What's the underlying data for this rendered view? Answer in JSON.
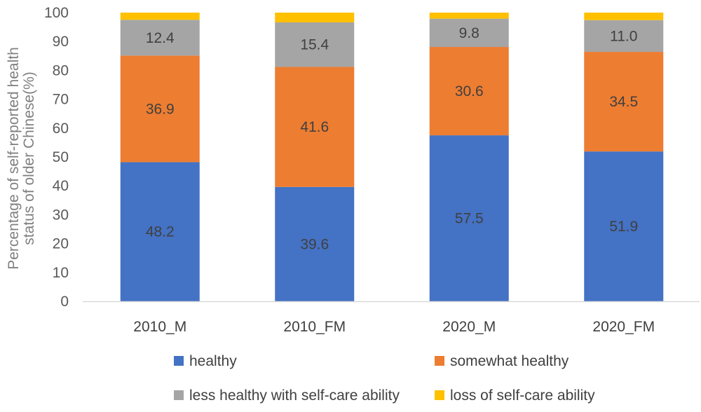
{
  "chart_data": {
    "type": "bar",
    "stacked": true,
    "ylabel": [
      "Percentage of self-reported health",
      "status of older Chinese(%)"
    ],
    "ylim": [
      0,
      100
    ],
    "yticks": [
      0,
      10,
      20,
      30,
      40,
      50,
      60,
      70,
      80,
      90,
      100
    ],
    "grid": false,
    "legend_position": "bottom",
    "categories": [
      "2010_M",
      "2010_FM",
      "2020_M",
      "2020_FM"
    ],
    "series": [
      {
        "name": "healthy",
        "color": "#4472C4",
        "values": [
          48.2,
          39.6,
          57.5,
          51.9
        ],
        "labels": [
          "48.2",
          "39.6",
          "57.5",
          "51.9"
        ]
      },
      {
        "name": "somewhat healthy",
        "color": "#ED7D31",
        "values": [
          36.9,
          41.6,
          30.6,
          34.5
        ],
        "labels": [
          "36.9",
          "41.6",
          "30.6",
          "34.5"
        ]
      },
      {
        "name": "less healthy with self-care ability",
        "color": "#A5A5A5",
        "values": [
          12.4,
          15.4,
          9.8,
          11.0
        ],
        "labels": [
          "12.4",
          "15.4",
          "9.8",
          "11.0"
        ]
      },
      {
        "name": "loss of self-care ability",
        "color": "#FFC000",
        "values": [
          2.5,
          3.4,
          2.1,
          2.6
        ],
        "labels": null
      }
    ]
  }
}
